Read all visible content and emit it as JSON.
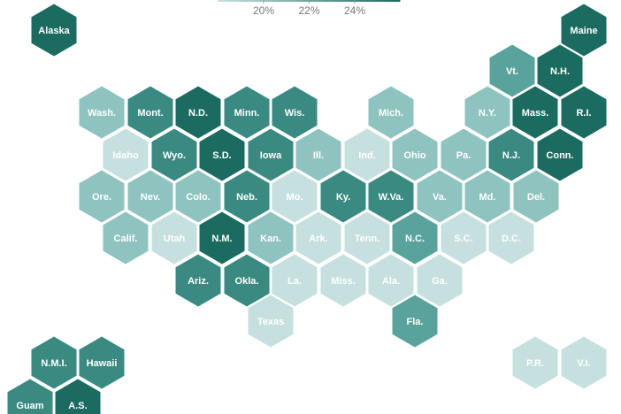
{
  "legend": {
    "range": [
      18,
      26
    ],
    "color_low": "#c5e0de",
    "color_high": "#1b6b60",
    "ticks": [
      {
        "value": 20,
        "label": "20%"
      },
      {
        "value": 22,
        "label": "22%"
      },
      {
        "value": 24,
        "label": "24%"
      }
    ]
  },
  "tiles": [
    {
      "label": "Alaska",
      "color": "#1b6b60"
    },
    {
      "label": "Maine",
      "color": "#1b6b60"
    },
    {
      "label": "Vt.",
      "color": "#5aa39d"
    },
    {
      "label": "N.H.",
      "color": "#1b6b60"
    },
    {
      "label": "Wash.",
      "color": "#8fc3bf"
    },
    {
      "label": "Mont.",
      "color": "#3a8a82"
    },
    {
      "label": "N.D.",
      "color": "#1b6b60"
    },
    {
      "label": "Minn.",
      "color": "#3a8a82"
    },
    {
      "label": "Wis.",
      "color": "#3a8a82"
    },
    {
      "label": "Mich.",
      "color": "#8fc3bf"
    },
    {
      "label": "N.Y.",
      "color": "#8fc3bf"
    },
    {
      "label": "Mass.",
      "color": "#1b6b60"
    },
    {
      "label": "R.I.",
      "color": "#1b6b60"
    },
    {
      "label": "Idaho",
      "color": "#c5e0de"
    },
    {
      "label": "Wyo.",
      "color": "#3a8a82"
    },
    {
      "label": "S.D.",
      "color": "#1b6b60"
    },
    {
      "label": "Iowa",
      "color": "#3a8a82"
    },
    {
      "label": "Ill.",
      "color": "#8fc3bf"
    },
    {
      "label": "Ind.",
      "color": "#c5e0de"
    },
    {
      "label": "Ohio",
      "color": "#8fc3bf"
    },
    {
      "label": "Pa.",
      "color": "#8fc3bf"
    },
    {
      "label": "N.J.",
      "color": "#3a8a82"
    },
    {
      "label": "Conn.",
      "color": "#1b6b60"
    },
    {
      "label": "Ore.",
      "color": "#8fc3bf"
    },
    {
      "label": "Nev.",
      "color": "#8fc3bf"
    },
    {
      "label": "Colo.",
      "color": "#8fc3bf"
    },
    {
      "label": "Neb.",
      "color": "#3a8a82"
    },
    {
      "label": "Mo.",
      "color": "#c5e0de"
    },
    {
      "label": "Ky.",
      "color": "#3a8a82"
    },
    {
      "label": "W.Va.",
      "color": "#3a8a82"
    },
    {
      "label": "Va.",
      "color": "#8fc3bf"
    },
    {
      "label": "Md.",
      "color": "#8fc3bf"
    },
    {
      "label": "Del.",
      "color": "#8fc3bf"
    },
    {
      "label": "Calif.",
      "color": "#8fc3bf"
    },
    {
      "label": "Utah",
      "color": "#c5e0de"
    },
    {
      "label": "N.M.",
      "color": "#1b6b60"
    },
    {
      "label": "Kan.",
      "color": "#8fc3bf"
    },
    {
      "label": "Ark.",
      "color": "#c5e0de"
    },
    {
      "label": "Tenn.",
      "color": "#c5e0de"
    },
    {
      "label": "N.C.",
      "color": "#5aa39d"
    },
    {
      "label": "S.C.",
      "color": "#c5e0de"
    },
    {
      "label": "D.C.",
      "color": "#c5e0de"
    },
    {
      "label": "Ariz.",
      "color": "#3a8a82"
    },
    {
      "label": "Okla.",
      "color": "#3a8a82"
    },
    {
      "label": "La.",
      "color": "#c5e0de"
    },
    {
      "label": "Miss.",
      "color": "#c5e0de"
    },
    {
      "label": "Ala.",
      "color": "#c5e0de"
    },
    {
      "label": "Ga.",
      "color": "#c5e0de"
    },
    {
      "label": "Texas",
      "color": "#c5e0de"
    },
    {
      "label": "Fla.",
      "color": "#5aa39d"
    },
    {
      "label": "N.M.I.",
      "color": "#3a8a82"
    },
    {
      "label": "Hawaii",
      "color": "#3a8a82"
    },
    {
      "label": "P.R.",
      "color": "#c5e0de"
    },
    {
      "label": "V.I.",
      "color": "#c5e0de"
    },
    {
      "label": "Guam",
      "color": "#3a8a82"
    },
    {
      "label": "A.S.",
      "color": "#1b6b60"
    }
  ]
}
